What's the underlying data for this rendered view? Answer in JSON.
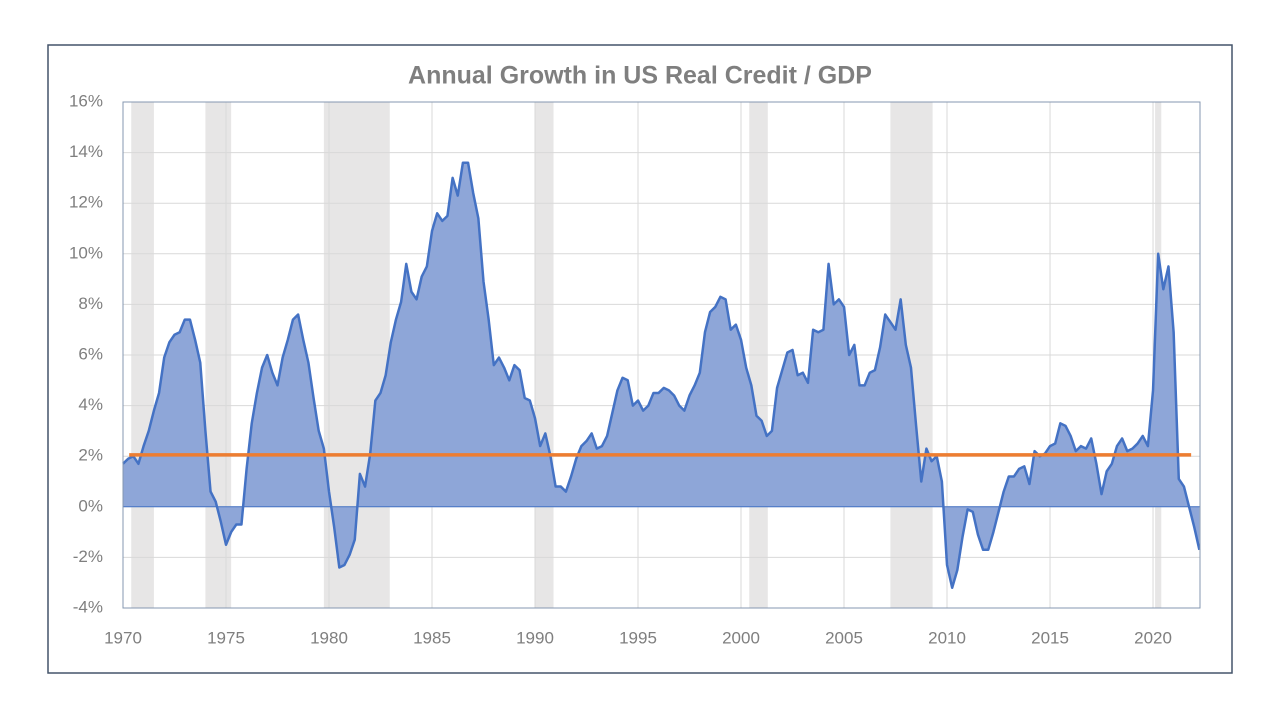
{
  "chart_data": {
    "type": "area",
    "title": "Annual Growth in US Real Credit / GDP",
    "x": [
      1970,
      1970.25,
      1970.5,
      1970.75,
      1971,
      1971.25,
      1971.5,
      1971.75,
      1972,
      1972.25,
      1972.5,
      1972.75,
      1973,
      1973.25,
      1973.5,
      1973.75,
      1974,
      1974.25,
      1974.5,
      1974.75,
      1975,
      1975.25,
      1975.5,
      1975.75,
      1976,
      1976.25,
      1976.5,
      1976.75,
      1977,
      1977.25,
      1977.5,
      1977.75,
      1978,
      1978.25,
      1978.5,
      1978.75,
      1979,
      1979.25,
      1979.5,
      1979.75,
      1980,
      1980.25,
      1980.5,
      1980.75,
      1981,
      1981.25,
      1981.5,
      1981.75,
      1982,
      1982.25,
      1982.5,
      1982.75,
      1983,
      1983.25,
      1983.5,
      1983.75,
      1984,
      1984.25,
      1984.5,
      1984.75,
      1985,
      1985.25,
      1985.5,
      1985.75,
      1986,
      1986.25,
      1986.5,
      1986.75,
      1987,
      1987.25,
      1987.5,
      1987.75,
      1988,
      1988.25,
      1988.5,
      1988.75,
      1989,
      1989.25,
      1989.5,
      1989.75,
      1990,
      1990.25,
      1990.5,
      1990.75,
      1991,
      1991.25,
      1991.5,
      1991.75,
      1992,
      1992.25,
      1992.5,
      1992.75,
      1993,
      1993.25,
      1993.5,
      1993.75,
      1994,
      1994.25,
      1994.5,
      1994.75,
      1995,
      1995.25,
      1995.5,
      1995.75,
      1996,
      1996.25,
      1996.5,
      1996.75,
      1997,
      1997.25,
      1997.5,
      1997.75,
      1998,
      1998.25,
      1998.5,
      1998.75,
      1999,
      1999.25,
      1999.5,
      1999.75,
      2000,
      2000.25,
      2000.5,
      2000.75,
      2001,
      2001.25,
      2001.5,
      2001.75,
      2002,
      2002.25,
      2002.5,
      2002.75,
      2003,
      2003.25,
      2003.5,
      2003.75,
      2004,
      2004.25,
      2004.5,
      2004.75,
      2005,
      2005.25,
      2005.5,
      2005.75,
      2006,
      2006.25,
      2006.5,
      2006.75,
      2007,
      2007.25,
      2007.5,
      2007.75,
      2008,
      2008.25,
      2008.5,
      2008.75,
      2009,
      2009.25,
      2009.5,
      2009.75,
      2010,
      2010.25,
      2010.5,
      2010.75,
      2011,
      2011.25,
      2011.5,
      2011.75,
      2012,
      2012.25,
      2012.5,
      2012.75,
      2013,
      2013.25,
      2013.5,
      2013.75,
      2014,
      2014.25,
      2014.5,
      2014.75,
      2015,
      2015.25,
      2015.5,
      2015.75,
      2016,
      2016.25,
      2016.5,
      2016.75,
      2017,
      2017.25,
      2017.5,
      2017.75,
      2018,
      2018.25,
      2018.5,
      2018.75,
      2019,
      2019.25,
      2019.5,
      2019.75,
      2020,
      2020.25,
      2020.5,
      2020.75,
      2021,
      2021.25,
      2021.5,
      2021.75,
      2022,
      2022.25
    ],
    "series": [
      {
        "color": "#4472c4",
        "fill": "#8ea6d8",
        "values": [
          1.7,
          1.9,
          2.0,
          1.7,
          2.4,
          3.0,
          3.8,
          4.5,
          5.9,
          6.5,
          6.8,
          6.9,
          7.4,
          7.4,
          6.6,
          5.7,
          3.0,
          0.6,
          0.2,
          -0.6,
          -1.5,
          -1.0,
          -0.7,
          -0.7,
          1.5,
          3.3,
          4.5,
          5.5,
          6.0,
          5.3,
          4.8,
          5.9,
          6.6,
          7.4,
          7.6,
          6.6,
          5.7,
          4.3,
          3.0,
          2.3,
          0.6,
          -0.8,
          -2.4,
          -2.3,
          -1.9,
          -1.3,
          1.3,
          0.8,
          2.1,
          4.2,
          4.5,
          5.2,
          6.5,
          7.4,
          8.1,
          9.6,
          8.5,
          8.2,
          9.1,
          9.5,
          10.9,
          11.6,
          11.3,
          11.5,
          13.0,
          12.3,
          13.6,
          13.6,
          12.4,
          11.4,
          8.9,
          7.4,
          5.6,
          5.9,
          5.5,
          5.0,
          5.6,
          5.4,
          4.3,
          4.2,
          3.5,
          2.4,
          2.9,
          2.0,
          0.8,
          0.8,
          0.6,
          1.2,
          1.9,
          2.4,
          2.6,
          2.9,
          2.3,
          2.4,
          2.8,
          3.7,
          4.6,
          5.1,
          5.0,
          4.0,
          4.2,
          3.8,
          4.0,
          4.5,
          4.5,
          4.7,
          4.6,
          4.4,
          4.0,
          3.8,
          4.4,
          4.8,
          5.3,
          6.9,
          7.7,
          7.9,
          8.3,
          8.2,
          7.0,
          7.2,
          6.6,
          5.5,
          4.8,
          3.6,
          3.4,
          2.8,
          3.0,
          4.7,
          5.4,
          6.1,
          6.2,
          5.2,
          5.3,
          4.9,
          7.0,
          6.9,
          7.0,
          9.6,
          8.0,
          8.2,
          7.9,
          6.0,
          6.4,
          4.8,
          4.8,
          5.3,
          5.4,
          6.3,
          7.6,
          7.3,
          7.0,
          8.2,
          6.4,
          5.5,
          3.2,
          1.0,
          2.3,
          1.8,
          2.0,
          1.0,
          -2.3,
          -3.2,
          -2.5,
          -1.2,
          -0.1,
          -0.2,
          -1.1,
          -1.7,
          -1.7,
          -1.0,
          -0.2,
          0.6,
          1.2,
          1.2,
          1.5,
          1.6,
          0.9,
          2.2,
          2.0,
          2.1,
          2.4,
          2.5,
          3.3,
          3.2,
          2.8,
          2.2,
          2.4,
          2.3,
          2.7,
          1.7,
          0.5,
          1.4,
          1.7,
          2.4,
          2.7,
          2.2,
          2.3,
          2.5,
          2.8,
          2.4,
          4.6,
          10.0,
          8.6,
          9.5,
          6.9,
          1.1,
          0.8,
          0.0,
          -0.8,
          -1.7
        ]
      }
    ],
    "reference_line": {
      "value": 2.05,
      "x": [
        1970.3,
        2021.85
      ],
      "color": "#ed7d31"
    },
    "shaded_periods": [
      [
        1970.4,
        1971.5
      ],
      [
        1974.0,
        1975.25
      ],
      [
        1979.75,
        1982.95
      ],
      [
        1990.0,
        1990.9
      ],
      [
        2000.4,
        2001.3
      ],
      [
        2007.25,
        2009.3
      ],
      [
        2020.1,
        2020.4
      ]
    ],
    "shade_color": "#e7e6e6",
    "xlim": [
      1970,
      2022.28
    ],
    "xticks": [
      1970,
      1975,
      1980,
      1985,
      1990,
      1995,
      2000,
      2005,
      2010,
      2015,
      2020
    ],
    "ylim": [
      -4,
      16
    ],
    "yticks": [
      {
        "value": -4,
        "label": "-4%"
      },
      {
        "value": -2,
        "label": "-2%"
      },
      {
        "value": 0,
        "label": "0%"
      },
      {
        "value": 2,
        "label": "2%"
      },
      {
        "value": 4,
        "label": "4%"
      },
      {
        "value": 6,
        "label": "6%"
      },
      {
        "value": 8,
        "label": "8%"
      },
      {
        "value": 10,
        "label": "10%"
      },
      {
        "value": 12,
        "label": "12%"
      },
      {
        "value": 14,
        "label": "14%"
      },
      {
        "value": 16,
        "label": "16%"
      }
    ],
    "grid": true
  }
}
